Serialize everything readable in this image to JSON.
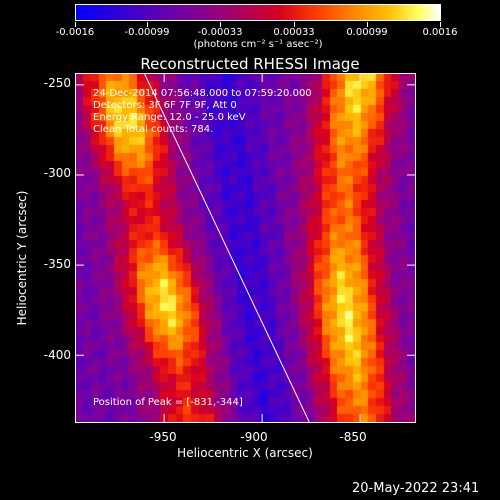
{
  "colorbar": {
    "tick_labels": [
      "-0.0016",
      "-0.00099",
      "-0.00033",
      "0.00033",
      "0.00099",
      "0.0016"
    ],
    "unit_label": "(photons cm⁻² s⁻¹ asec⁻²)"
  },
  "info": {
    "time_range": "24-Dec-2014 07:56:48.000 to 07:59:20.000",
    "detectors": "Detectors: 3F 6F 7F 9F, Att 0",
    "energy_range": "Energy Range: 12.0 - 25.0 keV",
    "algorithm": "Clean     Total counts: 784."
  },
  "peak_label": "Position of Peak = [-831,-344]",
  "timestamp": "20-May-2022 23:41",
  "chart_data": {
    "type": "heatmap",
    "title": "Reconstructed RHESSI Image",
    "xlabel": "Heliocentric X (arcsec)",
    "ylabel": "Heliocentric Y (arcsec)",
    "xlim": [
      -995,
      -822
    ],
    "ylim": [
      -437,
      -244
    ],
    "x_ticks": [
      -950,
      -900,
      -850
    ],
    "x_tick_labels": [
      "-950",
      "-900",
      "-850"
    ],
    "y_ticks": [
      -250,
      -300,
      -350,
      -400
    ],
    "y_tick_labels": [
      "-250",
      "-300",
      "-350",
      "-400"
    ],
    "colorbar_range": [
      -0.0016,
      0.0016
    ],
    "peak_position": [
      -831,
      -344
    ],
    "limb_line": [
      [
        -960,
        -244
      ],
      [
        -876,
        -437
      ]
    ],
    "grid": false
  }
}
